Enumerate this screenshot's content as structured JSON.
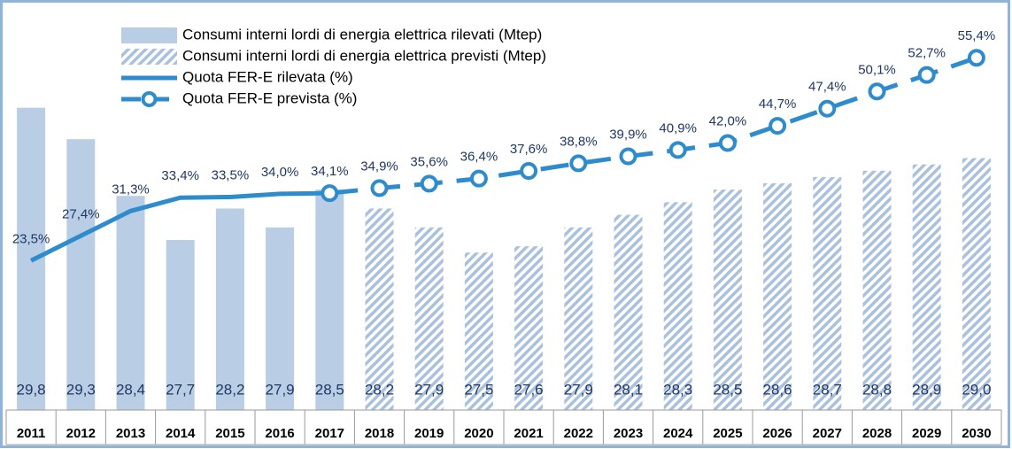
{
  "chart_data": {
    "type": "bar",
    "categories": [
      "2011",
      "2012",
      "2013",
      "2014",
      "2015",
      "2016",
      "2017",
      "2018",
      "2019",
      "2020",
      "2021",
      "2022",
      "2023",
      "2024",
      "2025",
      "2026",
      "2027",
      "2028",
      "2029",
      "2030"
    ],
    "ylim": [
      25,
      31.3
    ],
    "y2lim": [
      0,
      62.4
    ],
    "legend": "top-left",
    "series": [
      {
        "name": "Consumi interni lordi di energia elettrica rilevati (Mtep)",
        "type": "bar",
        "color": "#b9cde5",
        "values": [
          29.8,
          29.3,
          28.4,
          27.7,
          28.2,
          27.9,
          28.5,
          null,
          null,
          null,
          null,
          null,
          null,
          null,
          null,
          null,
          null,
          null,
          null,
          null
        ],
        "value_labels": [
          "29,8",
          "29,3",
          "28,4",
          "27,7",
          "28,2",
          "27,9",
          "28,5",
          null,
          null,
          null,
          null,
          null,
          null,
          null,
          null,
          null,
          null,
          null,
          null,
          null
        ]
      },
      {
        "name": "Consumi interni lordi di energia elettrica previsti (Mtep)",
        "type": "bar",
        "hatch": true,
        "color": "#a9c1de",
        "values": [
          null,
          null,
          null,
          null,
          null,
          null,
          null,
          28.2,
          27.9,
          27.5,
          27.6,
          27.9,
          28.1,
          28.3,
          28.5,
          28.6,
          28.7,
          28.8,
          28.9,
          29.0
        ],
        "value_labels": [
          null,
          null,
          null,
          null,
          null,
          null,
          null,
          "28,2",
          "27,9",
          "27,5",
          "27,6",
          "27,9",
          "28,1",
          "28,3",
          "28,5",
          "28,6",
          "28,7",
          "28,8",
          "28,9",
          "29,0"
        ]
      },
      {
        "name": "Quota FER-E rilevata (%)",
        "type": "line",
        "axis": "y2",
        "color": "#2f8ccc",
        "values": [
          23.5,
          27.4,
          31.3,
          33.4,
          33.5,
          34.0,
          34.1,
          null,
          null,
          null,
          null,
          null,
          null,
          null,
          null,
          null,
          null,
          null,
          null,
          null
        ],
        "value_labels": [
          "23,5%",
          "27,4%",
          "31,3%",
          "33,4%",
          "33,5%",
          "34,0%",
          "34,1%",
          null,
          null,
          null,
          null,
          null,
          null,
          null,
          null,
          null,
          null,
          null,
          null,
          null
        ]
      },
      {
        "name": "Quota FER-E prevista (%)",
        "type": "line",
        "axis": "y2",
        "dashed": true,
        "markers": true,
        "color": "#2f8ccc",
        "values": [
          null,
          null,
          null,
          null,
          null,
          null,
          34.1,
          34.9,
          35.6,
          36.4,
          37.6,
          38.8,
          39.9,
          40.9,
          42.0,
          44.7,
          47.4,
          50.1,
          52.7,
          55.4
        ],
        "value_labels": [
          null,
          null,
          null,
          null,
          null,
          null,
          null,
          "34,9%",
          "35,6%",
          "36,4%",
          "37,6%",
          "38,8%",
          "39,9%",
          "40,9%",
          "42,0%",
          "44,7%",
          "47,4%",
          "50,1%",
          "52,7%",
          "55,4%"
        ]
      }
    ]
  }
}
